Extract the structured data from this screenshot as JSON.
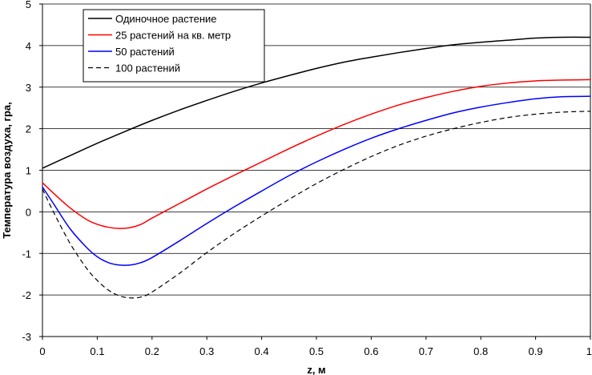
{
  "chart_data": {
    "type": "line",
    "title": "",
    "xlabel": "z, м",
    "ylabel": "Температура воздуха, гра,",
    "xlim": [
      0,
      1
    ],
    "ylim": [
      -3,
      5
    ],
    "xticks": [
      0,
      0.1,
      0.2,
      0.3,
      0.4,
      0.5,
      0.6,
      0.7,
      0.8,
      0.9,
      1
    ],
    "xtick_labels": [
      "0",
      "0.1",
      "0.2",
      "0.3",
      "0.4",
      "0.5",
      "0.6",
      "0.7",
      "0.8",
      "0.9",
      "1"
    ],
    "yticks": [
      -3,
      -2,
      -1,
      0,
      1,
      2,
      3,
      4,
      5
    ],
    "ytick_labels": [
      "-3",
      "-2",
      "-1",
      "0",
      "1",
      "2",
      "3",
      "4",
      "5"
    ],
    "grid": "horizontal",
    "legend_position": "top-left",
    "series": [
      {
        "name": "Одиночное растение",
        "color": "#000000",
        "dash": "solid",
        "x": [
          0,
          0.05,
          0.1,
          0.15,
          0.2,
          0.25,
          0.3,
          0.35,
          0.4,
          0.45,
          0.5,
          0.55,
          0.6,
          0.65,
          0.7,
          0.75,
          0.8,
          0.85,
          0.9,
          0.95,
          1.0
        ],
        "y": [
          1.05,
          1.35,
          1.65,
          1.93,
          2.2,
          2.45,
          2.68,
          2.9,
          3.1,
          3.28,
          3.45,
          3.6,
          3.72,
          3.83,
          3.93,
          4.02,
          4.08,
          4.13,
          4.18,
          4.2,
          4.2
        ]
      },
      {
        "name": "25 растений на кв. метр",
        "color": "#ff0000",
        "dash": "solid",
        "x": [
          0,
          0.02,
          0.05,
          0.08,
          0.1,
          0.12,
          0.14,
          0.16,
          0.18,
          0.2,
          0.25,
          0.3,
          0.35,
          0.4,
          0.45,
          0.5,
          0.55,
          0.6,
          0.65,
          0.7,
          0.75,
          0.8,
          0.85,
          0.9,
          0.95,
          1.0
        ],
        "y": [
          0.7,
          0.45,
          0.1,
          -0.18,
          -0.3,
          -0.37,
          -0.4,
          -0.38,
          -0.3,
          -0.15,
          0.2,
          0.55,
          0.88,
          1.2,
          1.52,
          1.82,
          2.1,
          2.35,
          2.57,
          2.75,
          2.9,
          3.02,
          3.1,
          3.15,
          3.17,
          3.18
        ]
      },
      {
        "name": "50 растений",
        "color": "#0000ff",
        "dash": "solid",
        "x": [
          0,
          0.02,
          0.05,
          0.08,
          0.1,
          0.12,
          0.14,
          0.16,
          0.18,
          0.2,
          0.25,
          0.3,
          0.35,
          0.4,
          0.45,
          0.5,
          0.55,
          0.6,
          0.65,
          0.7,
          0.75,
          0.8,
          0.85,
          0.9,
          0.95,
          1.0
        ],
        "y": [
          0.6,
          0.2,
          -0.4,
          -0.85,
          -1.08,
          -1.22,
          -1.28,
          -1.28,
          -1.22,
          -1.1,
          -0.7,
          -0.28,
          0.12,
          0.5,
          0.87,
          1.2,
          1.5,
          1.77,
          2.0,
          2.2,
          2.38,
          2.52,
          2.63,
          2.72,
          2.77,
          2.78
        ]
      },
      {
        "name": "100 растений",
        "color": "#000000",
        "dash": "dashed",
        "x": [
          0,
          0.02,
          0.05,
          0.08,
          0.1,
          0.12,
          0.14,
          0.16,
          0.18,
          0.2,
          0.25,
          0.3,
          0.35,
          0.4,
          0.45,
          0.5,
          0.55,
          0.6,
          0.65,
          0.7,
          0.75,
          0.8,
          0.85,
          0.9,
          0.95,
          1.0
        ],
        "y": [
          0.55,
          0.0,
          -0.75,
          -1.35,
          -1.65,
          -1.88,
          -2.02,
          -2.07,
          -2.05,
          -1.93,
          -1.48,
          -0.98,
          -0.52,
          -0.1,
          0.3,
          0.68,
          1.02,
          1.33,
          1.6,
          1.82,
          2.0,
          2.15,
          2.27,
          2.35,
          2.4,
          2.42
        ]
      }
    ]
  }
}
